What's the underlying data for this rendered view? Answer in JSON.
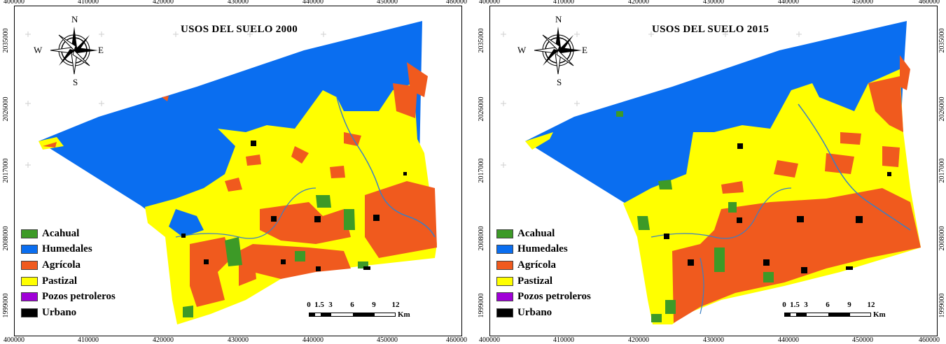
{
  "maps": [
    {
      "title": "USOS DEL SUELO 2000",
      "year": "2000"
    },
    {
      "title": "USOS DEL SUELO 2015",
      "year": "2015"
    }
  ],
  "axes": {
    "x_ticks": [
      "400000",
      "410000",
      "420000",
      "430000",
      "440000",
      "450000",
      "460000"
    ],
    "y_ticks": [
      "2035000",
      "2026000",
      "2017000",
      "2008000",
      "1999000"
    ]
  },
  "legend": [
    {
      "label": "Acahual",
      "color": "#3d9a27"
    },
    {
      "label": "Humedales",
      "color": "#0a6ef0"
    },
    {
      "label": "Agrícola",
      "color": "#f05a1e"
    },
    {
      "label": "Pastizal",
      "color": "#ffff00"
    },
    {
      "label": "Pozos petroleros",
      "color": "#a000d8"
    },
    {
      "label": "Urbano",
      "color": "#000000"
    }
  ],
  "compass": {
    "n": "N",
    "s": "S",
    "e": "E",
    "w": "W"
  },
  "scale": {
    "labels": [
      "0",
      "1.5",
      "3",
      "6",
      "9",
      "12"
    ],
    "unit": "Km"
  }
}
